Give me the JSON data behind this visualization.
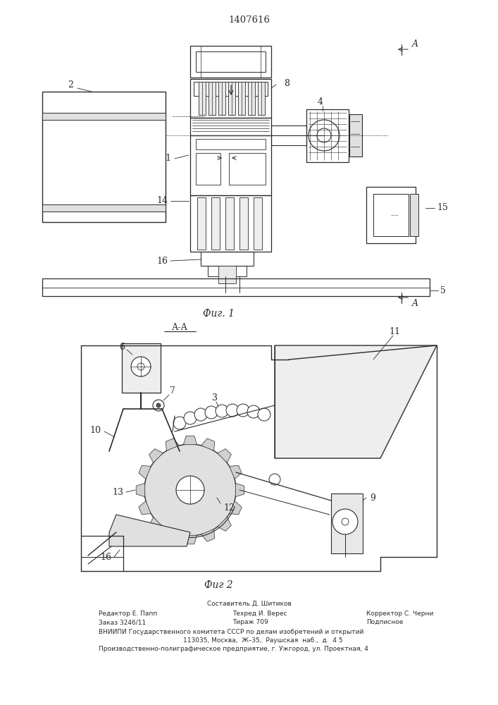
{
  "patent_number": "1407616",
  "fig1_label": "Фиг. 1",
  "fig2_label": "Фиг 2",
  "section_label": "А-А",
  "arrow_label_A": "A",
  "background_color": "#ffffff",
  "line_color": "#2a2a2a",
  "footer_col1_line1": "Редактор Е. Папп",
  "footer_col1_line2": "Заказ 3246/11",
  "footer_col2_line0": "Составитель Д. Шитиков",
  "footer_col2_line1": "Техред И. Верес",
  "footer_col2_line2": "Тираж 709",
  "footer_col3_line1": "Корректор С. Черни",
  "footer_col3_line2": "Подписное",
  "footer_line3": "ВНИИПИ Государственного комитета СССР по делам изобретений и открытий",
  "footer_line4": "113035, Москва,  Ж–35,  Раушская  наб.,  д.  4 5",
  "footer_line5": "Производственно-полиграфическое предприятие, г. Ужгород, ул. Проектная, 4"
}
